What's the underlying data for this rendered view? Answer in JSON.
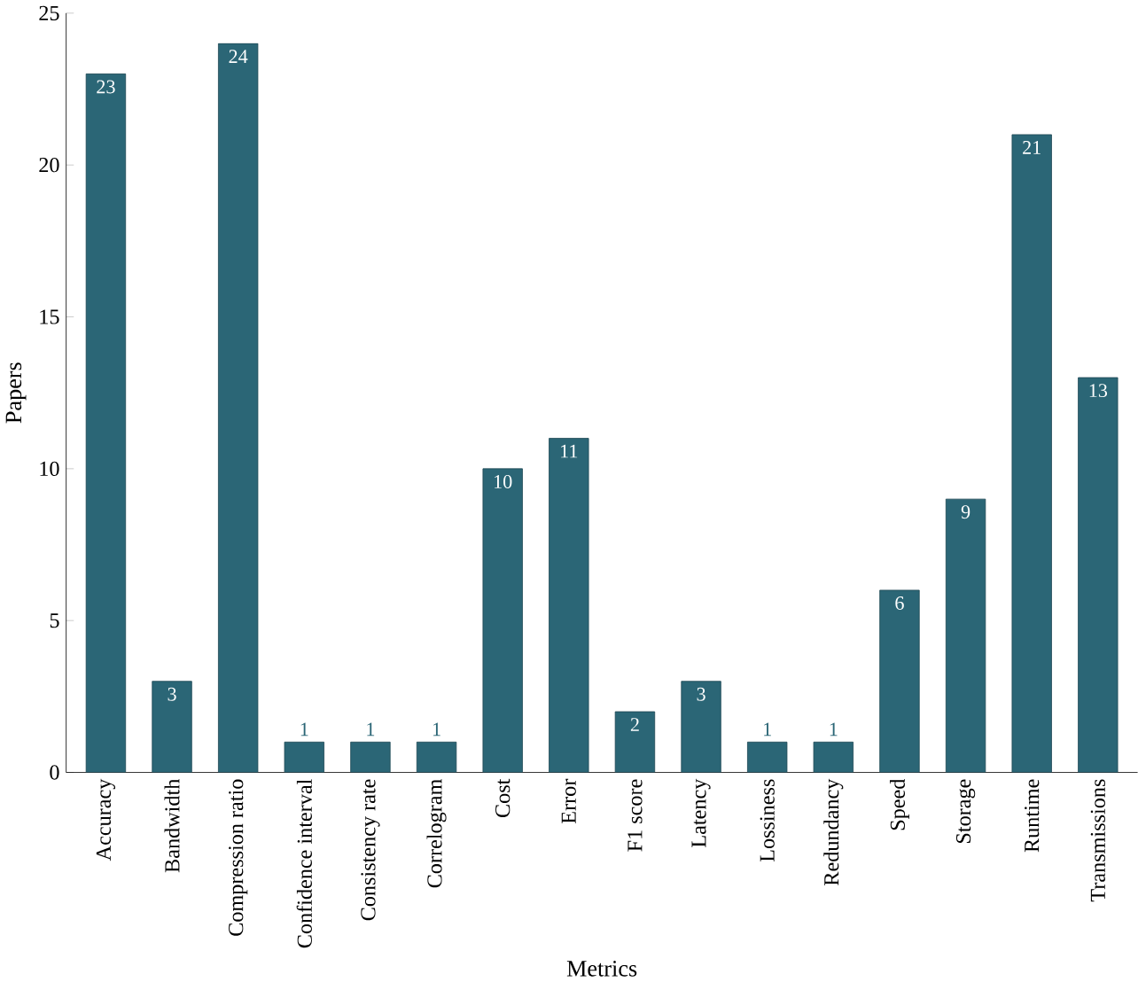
{
  "chart_data": {
    "type": "bar",
    "xlabel": "Metrics",
    "ylabel": "Papers",
    "categories": [
      "Accuracy",
      "Bandwidth",
      "Compression ratio",
      "Confidence interval",
      "Consistency rate",
      "Correlogram",
      "Cost",
      "Error",
      "F1 score",
      "Latency",
      "Lossiness",
      "Redundancy",
      "Speed",
      "Storage",
      "Runtime",
      "Transmissions"
    ],
    "values": [
      23,
      3,
      24,
      1,
      1,
      1,
      10,
      11,
      2,
      3,
      1,
      1,
      6,
      9,
      21,
      13
    ],
    "color": "#2b6676",
    "ylim": [
      0,
      25
    ],
    "yticks": [
      0,
      5,
      10,
      15,
      20,
      25
    ],
    "data_labels": true,
    "grid": false
  }
}
